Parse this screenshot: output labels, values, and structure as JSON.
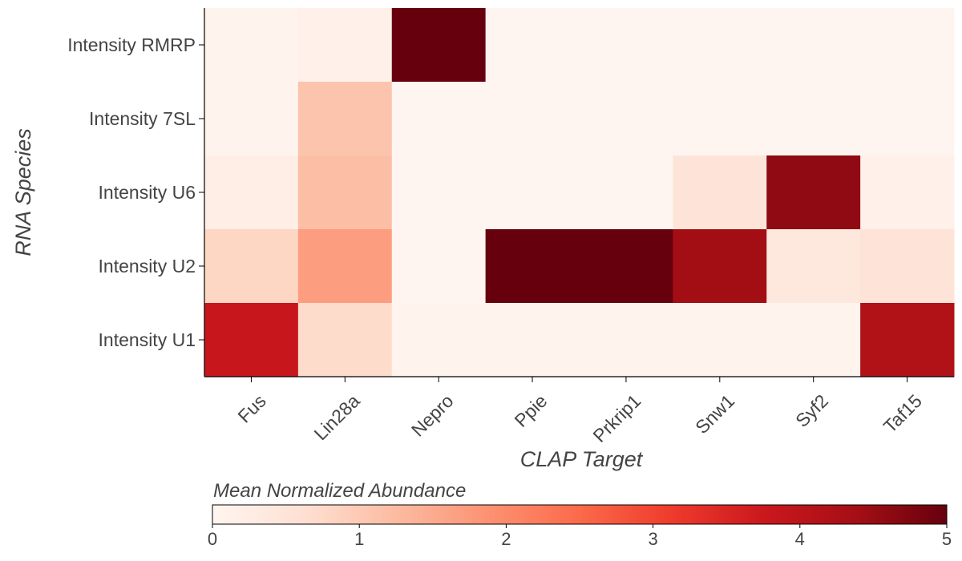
{
  "chart_data": {
    "type": "heatmap",
    "xlabel": "CLAP Target",
    "ylabel": "RNA Species",
    "x_categories": [
      "Fus",
      "Lin28a",
      "Nepro",
      "Ppie",
      "Prkrip1",
      "Snw1",
      "Syf2",
      "Taf15"
    ],
    "y_categories": [
      "Intensity RMRP",
      "Intensity 7SL",
      "Intensity U6",
      "Intensity U2",
      "Intensity U1"
    ],
    "values": [
      [
        0.05,
        0.15,
        5.0,
        0.0,
        0.0,
        0.0,
        0.0,
        0.0
      ],
      [
        0.05,
        1.1,
        0.0,
        0.0,
        0.0,
        0.0,
        0.0,
        0.0
      ],
      [
        0.2,
        1.2,
        0.0,
        0.0,
        0.0,
        0.5,
        4.6,
        0.15
      ],
      [
        0.8,
        1.7,
        0.0,
        5.0,
        5.0,
        4.4,
        0.4,
        0.5
      ],
      [
        3.8,
        0.7,
        0.05,
        0.05,
        0.05,
        0.05,
        0.05,
        4.2
      ]
    ],
    "colorbar": {
      "title": "Mean Normalized Abundance",
      "range": [
        0,
        5
      ],
      "ticks": [
        "0",
        "1",
        "2",
        "3",
        "4",
        "5"
      ],
      "colorscale": "Reds",
      "colors": [
        "#fff5f0",
        "#fee0d2",
        "#fcbba1",
        "#fc9272",
        "#fb6a4a",
        "#ef3b2c",
        "#cb181d",
        "#a50f15",
        "#67000d"
      ]
    }
  }
}
